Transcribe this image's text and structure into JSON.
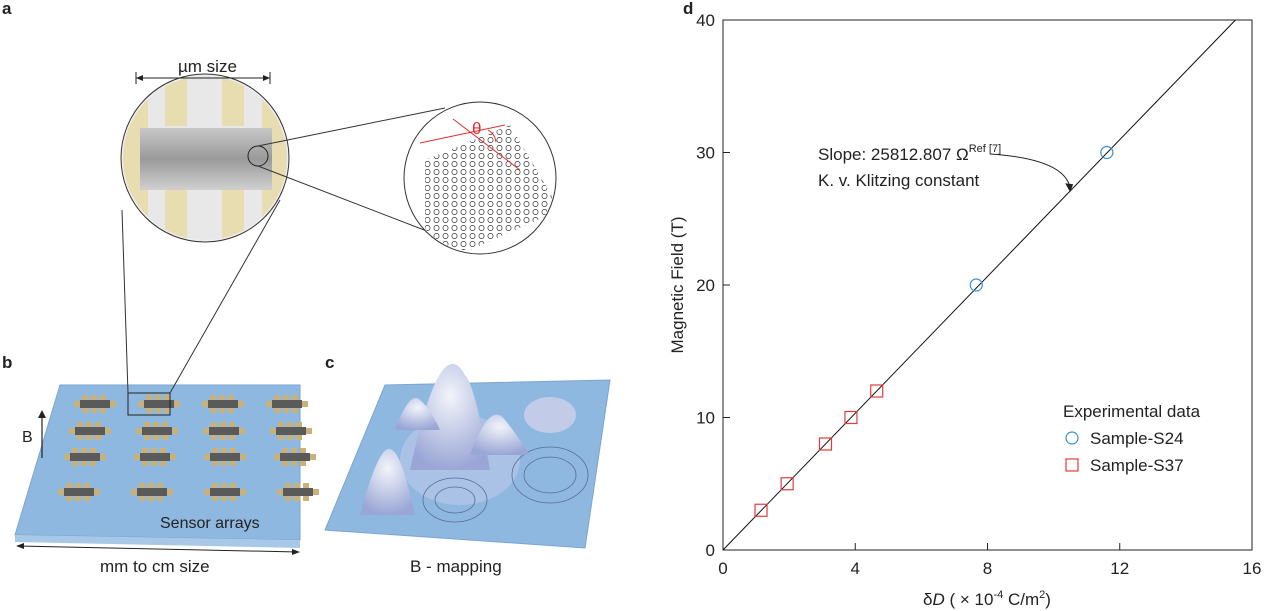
{
  "panels": {
    "a": {
      "letter": "a",
      "scale_label": "µm size",
      "angle_symbol": "θ"
    },
    "b": {
      "letter": "b",
      "field_label": "B",
      "array_label": "Sensor arrays",
      "size_label": "mm to cm size"
    },
    "c": {
      "letter": "c",
      "caption": "B - mapping"
    },
    "d": {
      "letter": "d"
    }
  },
  "colors": {
    "substrate": "#8fb8e0",
    "sensor": "#c9b27a",
    "series_s24": "#3a8fd6",
    "series_s37": "#e23b3b",
    "fit_line": "#111111",
    "angle_marker": "#e03030"
  },
  "chart_data": {
    "type": "scatter",
    "xlabel_prefix": "δ",
    "xlabel_var": "D",
    "xlabel_units": " ( × 10",
    "xlabel_exp": "-4",
    "xlabel_units2": " C/m",
    "xlabel_exp2": "2",
    "xlabel_close": ")",
    "ylabel": "Magnetic Field (T)",
    "xlim": [
      0,
      16
    ],
    "ylim": [
      0,
      40
    ],
    "xticks": [
      0,
      4,
      8,
      12,
      16
    ],
    "yticks": [
      0,
      10,
      20,
      30,
      40
    ],
    "grid": false,
    "legend": {
      "title": "Experimental data",
      "placement": "bottom-right"
    },
    "series": [
      {
        "name": "Sample-S24",
        "marker": "circle",
        "x": [
          7.66,
          11.61
        ],
        "y": [
          20,
          30
        ]
      },
      {
        "name": "Sample-S37",
        "marker": "square",
        "x": [
          1.15,
          1.94,
          3.1,
          3.87,
          4.65
        ],
        "y": [
          3,
          5,
          8,
          10,
          12
        ]
      }
    ],
    "fit_line": {
      "x": [
        0,
        15.5
      ],
      "y": [
        0,
        40
      ]
    },
    "annotation": {
      "line1": "Slope: 25812.807 Ω",
      "line1_sup": "Ref [7]",
      "line2": "K. v. Klitzing constant",
      "point": [
        10.5,
        27.0
      ]
    }
  }
}
